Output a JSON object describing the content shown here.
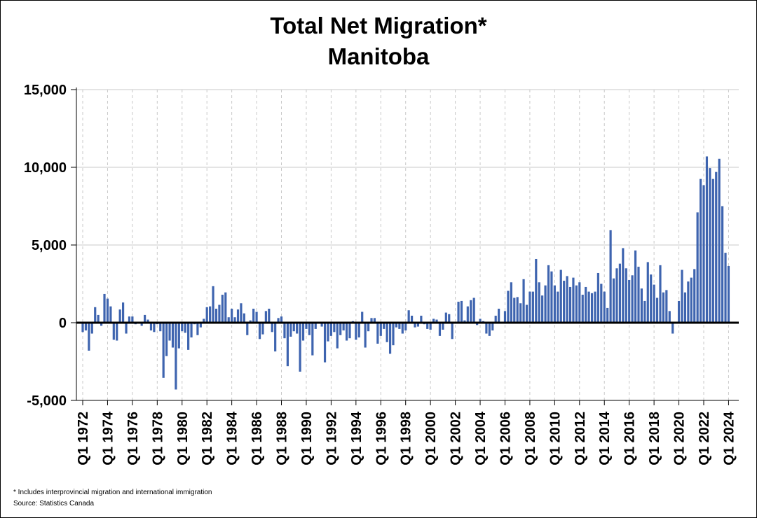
{
  "chart_data": {
    "type": "bar",
    "title": "Total Net Migration*",
    "subtitle": "Manitoba",
    "xlabel": "",
    "ylabel": "",
    "ylim": [
      -5000,
      15000
    ],
    "yticks": [
      -5000,
      0,
      5000,
      10000,
      15000
    ],
    "ytick_labels": [
      "-5,000",
      "0",
      "5,000",
      "10,000",
      "15,000"
    ],
    "grid": true,
    "bar_color": "#3E64AF",
    "x_start": "Q1 1972",
    "xtick_labels": [
      "Q1 1972",
      "Q1 1974",
      "Q1 1976",
      "Q1 1978",
      "Q1 1980",
      "Q1 1982",
      "Q1 1984",
      "Q1 1986",
      "Q1 1988",
      "Q1 1990",
      "Q1 1992",
      "Q1 1994",
      "Q1 1996",
      "Q1 1998",
      "Q1 2000",
      "Q1 2002",
      "Q1 2004",
      "Q1 2006",
      "Q1 2008",
      "Q1 2010",
      "Q1 2012",
      "Q1 2014",
      "Q1 2016",
      "Q1 2018",
      "Q1 2020",
      "Q1 2022",
      "Q1 2024"
    ],
    "series": [
      {
        "values": [
          -600,
          -500,
          -1800,
          -700,
          1000,
          500,
          -200,
          1850,
          1550,
          1050,
          -1100,
          -1150,
          850,
          1300,
          -700,
          400,
          400,
          -100,
          -50,
          -200,
          500,
          200,
          -500,
          -600,
          -100,
          -550,
          -3550,
          -2150,
          -1150,
          -1600,
          -4300,
          -1650,
          -550,
          -650,
          -1750,
          -950,
          -100,
          -800,
          -300,
          250,
          1000,
          1050,
          2350,
          900,
          1150,
          1800,
          1950,
          350,
          900,
          350,
          850,
          1250,
          600,
          -800,
          150,
          900,
          700,
          -1050,
          -750,
          750,
          900,
          -600,
          -1850,
          300,
          400,
          -1000,
          -2800,
          -900,
          -550,
          -700,
          -3150,
          -1150,
          -400,
          -800,
          -2100,
          -400,
          -50,
          -250,
          -2550,
          -1200,
          -850,
          -600,
          -1650,
          -800,
          -500,
          -1150,
          -1000,
          100,
          -1100,
          -950,
          700,
          -1600,
          -550,
          300,
          300,
          -1350,
          -850,
          -400,
          -1250,
          -2000,
          -1450,
          -300,
          -400,
          -700,
          -500,
          800,
          450,
          -300,
          -250,
          450,
          -100,
          -400,
          -450,
          250,
          200,
          -850,
          -450,
          650,
          550,
          -1050,
          -50,
          1350,
          1400,
          150,
          1050,
          1450,
          1600,
          -150,
          250,
          100,
          -700,
          -850,
          -500,
          450,
          900,
          0,
          750,
          2050,
          2600,
          1600,
          1650,
          1250,
          2800,
          1150,
          2000,
          2000,
          4100,
          2600,
          1750,
          2400,
          3700,
          3300,
          2400,
          2000,
          3400,
          2700,
          3000,
          2300,
          2900,
          2400,
          2600,
          1800,
          2300,
          2000,
          1900,
          2000,
          3200,
          2500,
          2000,
          950,
          5950,
          2850,
          3500,
          3800,
          4800,
          3500,
          2750,
          3050,
          4650,
          3600,
          2200,
          1400,
          3900,
          3100,
          2450,
          1600,
          3700,
          1950,
          2100,
          750,
          -700,
          0,
          1400,
          3400,
          1950,
          2650,
          2900,
          3450,
          7100,
          9250,
          8850,
          10700,
          9950,
          9250,
          9700,
          10550,
          7500,
          4500,
          3650
        ]
      }
    ]
  },
  "notes": {
    "footnote": "* Includes interprovincial migration and international immigration",
    "source": "Source: Statistics Canada"
  }
}
